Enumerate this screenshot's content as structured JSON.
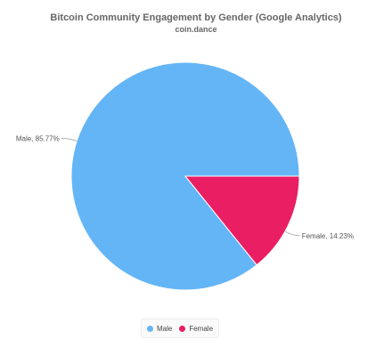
{
  "chart_data": {
    "type": "pie",
    "title": "Bitcoin Community Engagement by Gender (Google Analytics)",
    "subtitle": "coin.dance",
    "categories": [
      "Male",
      "Female"
    ],
    "values": [
      85.77,
      14.23
    ],
    "labels": [
      "Male, 85.77%",
      "Female, 14.23%"
    ],
    "colors": [
      "#64b5f6",
      "#e91e63"
    ],
    "legend_position": "bottom-center"
  },
  "legend": {
    "items": [
      {
        "label": "Male",
        "color": "#64b5f6"
      },
      {
        "label": "Female",
        "color": "#e91e63"
      }
    ]
  }
}
